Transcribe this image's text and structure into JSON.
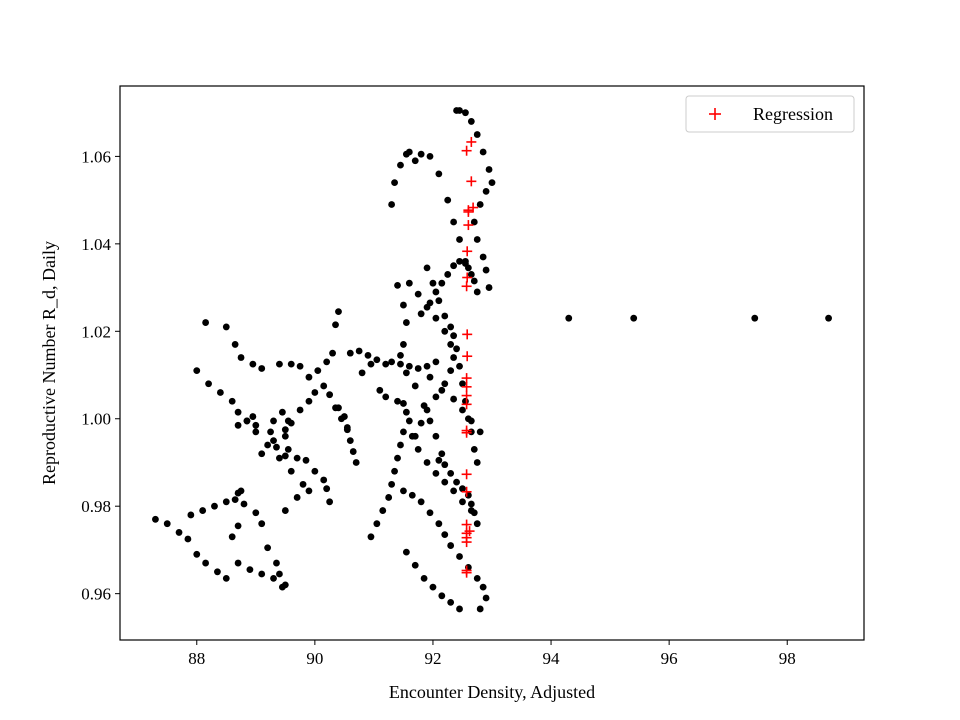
{
  "chart_data": {
    "type": "scatter",
    "xlabel": "Encounter Density, Adjusted",
    "ylabel": "Reproductive Number R_d, Daily",
    "xlim": [
      86.7,
      99.3
    ],
    "ylim": [
      0.9494,
      1.0761
    ],
    "xticks": [
      88,
      90,
      92,
      94,
      96,
      98
    ],
    "yticks": [
      0.96,
      0.98,
      1.0,
      1.02,
      1.04,
      1.06
    ],
    "xtick_labels": [
      "88",
      "90",
      "92",
      "94",
      "96",
      "98"
    ],
    "ytick_labels": [
      "0.96",
      "0.98",
      "1.00",
      "1.02",
      "1.04",
      "1.06"
    ],
    "grid": false,
    "legend_position": "upper right",
    "legend": [
      "Regression"
    ],
    "series": [
      {
        "marker": "dot",
        "color": "#000000",
        "x": [
          87.3,
          87.5,
          87.7,
          87.85,
          88.0,
          88.15,
          88.35,
          88.5,
          88.6,
          88.7,
          87.9,
          88.1,
          88.3,
          88.5,
          88.65,
          88.75,
          88.7,
          88.8,
          89.0,
          89.1,
          89.2,
          89.35,
          89.4,
          89.5,
          89.45,
          89.3,
          89.1,
          88.9,
          88.7,
          88.0,
          88.2,
          88.4,
          88.6,
          88.7,
          88.85,
          89.0,
          89.2,
          89.4,
          89.6,
          89.8,
          89.9,
          89.7,
          89.5,
          88.15,
          88.5,
          88.65,
          88.75,
          88.95,
          89.1,
          89.4,
          89.6,
          89.75,
          89.9,
          90.05,
          90.2,
          90.3,
          90.35,
          90.4,
          90.15,
          90.0,
          89.9,
          89.75,
          89.6,
          89.5,
          89.55,
          89.7,
          89.85,
          90.0,
          90.15,
          90.2,
          90.25,
          89.1,
          89.3,
          89.5,
          89.55,
          89.45,
          89.3,
          89.25,
          89.35,
          89.5,
          89.0,
          88.95,
          88.85,
          88.7,
          90.4,
          90.5,
          90.55,
          90.6,
          90.65,
          90.7,
          90.55,
          90.45,
          90.35,
          90.25,
          90.6,
          90.75,
          90.9,
          91.05,
          91.2,
          91.3,
          91.45,
          91.6,
          91.75,
          91.9,
          92.05,
          90.8,
          90.95,
          91.1,
          91.2,
          91.4,
          91.5,
          91.55,
          91.6,
          91.5,
          91.45,
          91.4,
          91.35,
          91.3,
          91.25,
          91.15,
          91.05,
          90.95,
          91.3,
          91.35,
          91.45,
          91.55,
          91.6,
          91.7,
          91.8,
          91.95,
          92.1,
          92.25,
          92.35,
          92.45,
          92.55,
          91.4,
          91.5,
          91.55,
          91.5,
          91.45,
          91.55,
          91.7,
          91.85,
          91.95,
          92.05,
          92.15,
          91.9,
          92.0,
          92.1,
          92.2,
          92.3,
          92.35,
          92.4,
          92.45,
          92.5,
          92.55,
          92.6,
          92.65,
          92.7,
          92.75,
          92.4,
          92.45,
          92.55,
          92.65,
          92.75,
          92.85,
          92.95,
          93.0,
          92.9,
          92.8,
          92.7,
          92.75,
          92.85,
          92.9,
          92.95,
          91.6,
          91.75,
          91.9,
          92.05,
          92.2,
          92.3,
          92.35,
          92.3,
          92.2,
          92.05,
          91.9,
          91.8,
          91.7,
          91.95,
          92.15,
          92.35,
          92.5,
          92.65,
          92.8,
          91.5,
          91.65,
          91.8,
          91.95,
          92.1,
          92.2,
          92.3,
          92.45,
          92.6,
          92.75,
          92.85,
          92.9,
          92.8,
          91.55,
          91.7,
          91.85,
          92.0,
          92.15,
          92.3,
          92.45,
          91.65,
          91.75,
          91.9,
          92.05,
          92.2,
          92.35,
          92.5,
          92.65,
          91.8,
          91.95,
          92.05,
          92.15,
          92.25,
          92.35,
          92.45,
          92.55,
          92.6,
          92.65,
          92.7,
          92.75,
          92.1,
          92.2,
          92.3,
          92.4,
          92.5,
          92.6,
          92.65,
          92.7,
          92.75,
          94.3,
          95.4,
          97.45,
          98.7
        ],
        "y": [
          0.977,
          0.976,
          0.974,
          0.9725,
          0.969,
          0.967,
          0.965,
          0.9635,
          0.973,
          0.9755,
          0.978,
          0.979,
          0.98,
          0.981,
          0.9815,
          0.9835,
          0.983,
          0.9805,
          0.9785,
          0.976,
          0.9705,
          0.967,
          0.9645,
          0.962,
          0.9615,
          0.9635,
          0.9645,
          0.9655,
          0.967,
          1.011,
          1.008,
          1.006,
          1.004,
          1.0015,
          0.9995,
          0.997,
          0.994,
          0.991,
          0.988,
          0.985,
          0.9835,
          0.982,
          0.979,
          1.022,
          1.021,
          1.017,
          1.014,
          1.0125,
          1.0115,
          1.0125,
          1.0125,
          1.012,
          1.0095,
          1.011,
          1.013,
          1.015,
          1.0215,
          1.0245,
          1.0075,
          1.006,
          1.004,
          1.002,
          0.999,
          0.996,
          0.993,
          0.991,
          0.9905,
          0.988,
          0.986,
          0.984,
          0.981,
          0.992,
          0.995,
          0.9975,
          0.9995,
          1.0015,
          0.9995,
          0.997,
          0.9935,
          0.9915,
          0.9985,
          1.0005,
          0.9995,
          0.9985,
          1.0025,
          1.0005,
          0.998,
          0.995,
          0.9925,
          0.99,
          0.9975,
          1.0,
          1.0025,
          1.0055,
          1.015,
          1.0155,
          1.0145,
          1.0135,
          1.0125,
          1.013,
          1.0125,
          1.012,
          1.0115,
          1.012,
          1.013,
          1.0105,
          1.0125,
          1.0065,
          1.005,
          1.004,
          1.0035,
          1.0015,
          0.9995,
          0.997,
          0.994,
          0.991,
          0.988,
          0.985,
          0.982,
          0.979,
          0.976,
          0.973,
          1.049,
          1.054,
          1.058,
          1.0605,
          1.061,
          1.059,
          1.0605,
          1.06,
          1.056,
          1.05,
          1.045,
          1.041,
          1.036,
          1.0305,
          1.026,
          1.022,
          1.017,
          1.0145,
          1.0105,
          1.0075,
          1.003,
          0.9995,
          0.996,
          0.992,
          1.0345,
          1.031,
          1.027,
          1.0235,
          1.021,
          1.019,
          1.016,
          1.012,
          1.008,
          1.004,
          1.0,
          0.997,
          0.993,
          0.99,
          1.0705,
          1.0705,
          1.07,
          1.068,
          1.065,
          1.061,
          1.057,
          1.054,
          1.052,
          1.049,
          1.045,
          1.041,
          1.037,
          1.034,
          1.03,
          1.031,
          1.0285,
          1.0255,
          1.023,
          1.02,
          1.017,
          1.014,
          1.011,
          1.008,
          1.005,
          1.002,
          0.999,
          0.996,
          1.0095,
          1.0065,
          1.0045,
          1.002,
          0.9995,
          0.997,
          0.9835,
          0.9825,
          0.981,
          0.9785,
          0.976,
          0.9735,
          0.971,
          0.9685,
          0.966,
          0.9635,
          0.9615,
          0.959,
          0.9565,
          0.9695,
          0.9665,
          0.9635,
          0.9615,
          0.9595,
          0.958,
          0.9565,
          0.996,
          0.993,
          0.99,
          0.9875,
          0.9855,
          0.9835,
          0.981,
          0.979,
          1.024,
          1.0265,
          1.029,
          1.031,
          1.033,
          1.035,
          1.036,
          1.0355,
          1.0345,
          1.033,
          1.0315,
          1.029,
          0.9905,
          0.9895,
          0.9875,
          0.9855,
          0.984,
          0.9825,
          0.9805,
          0.9785,
          0.976,
          1.023,
          1.023,
          1.023,
          1.023
        ]
      },
      {
        "name": "Regression",
        "marker": "plus",
        "color": "#ff0000",
        "x": [
          92.65,
          92.65,
          92.6,
          92.6,
          92.58,
          92.58,
          92.58,
          92.58,
          92.57,
          92.57,
          92.57,
          92.57,
          92.57,
          92.57,
          92.57,
          92.57,
          92.57,
          92.57,
          92.57,
          92.57,
          92.57,
          92.57,
          92.57,
          92.57,
          92.6,
          92.62,
          92.68
        ],
        "y": [
          1.0633,
          1.0543,
          1.0477,
          1.0443,
          1.0383,
          1.0323,
          1.0193,
          1.0143,
          1.0093,
          1.0073,
          1.0053,
          1.0033,
          0.9973,
          0.9968,
          0.9873,
          0.9833,
          0.9758,
          0.9738,
          0.9728,
          0.9718,
          0.9653,
          0.9648,
          1.0613,
          1.0303,
          1.0473,
          0.9743,
          1.0483
        ]
      }
    ]
  }
}
